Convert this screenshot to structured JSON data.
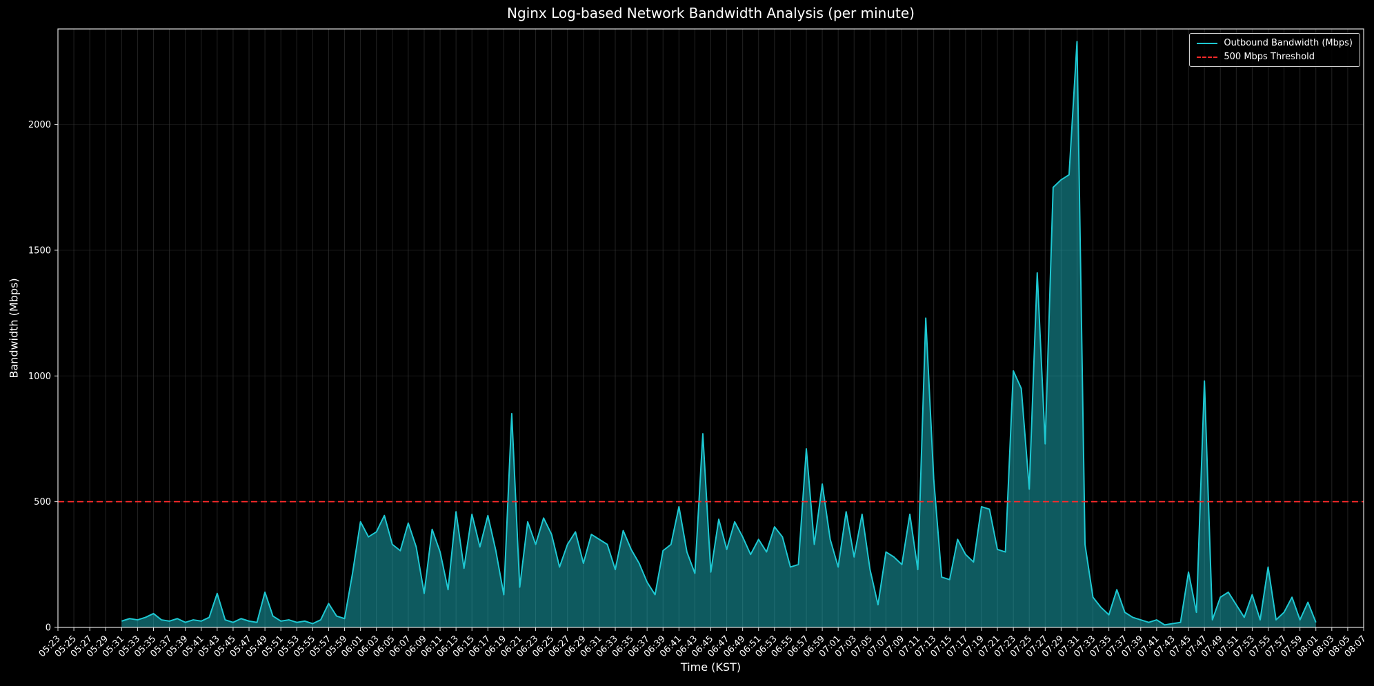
{
  "colors": {
    "background": "#000000",
    "text": "#ffffff",
    "spine": "#e0e0e0",
    "grid": "#3f3f3f",
    "series_line": "#1ec8d2",
    "threshold": "#ff2a2a"
  },
  "chart_data": {
    "type": "area",
    "title": "Nginx Log-based Network Bandwidth Analysis (per minute)",
    "xlabel": "Time (KST)",
    "ylabel": "Bandwidth (Mbps)",
    "ylim": [
      0,
      2380
    ],
    "grid": true,
    "y_ticks": [
      0,
      500,
      1000,
      1500,
      2000
    ],
    "x_tick_labels": [
      "05:23",
      "05:25",
      "05:27",
      "05:29",
      "05:31",
      "05:33",
      "05:35",
      "05:37",
      "05:39",
      "05:41",
      "05:43",
      "05:45",
      "05:47",
      "05:49",
      "05:51",
      "05:53",
      "05:55",
      "05:57",
      "05:59",
      "06:01",
      "06:03",
      "06:05",
      "06:07",
      "06:09",
      "06:11",
      "06:13",
      "06:15",
      "06:17",
      "06:19",
      "06:21",
      "06:23",
      "06:25",
      "06:27",
      "06:29",
      "06:31",
      "06:33",
      "06:35",
      "06:37",
      "06:39",
      "06:41",
      "06:43",
      "06:45",
      "06:47",
      "06:49",
      "06:51",
      "06:53",
      "06:55",
      "06:57",
      "06:59",
      "07:01",
      "07:03",
      "07:05",
      "07:07",
      "07:09",
      "07:11",
      "07:13",
      "07:15",
      "07:17",
      "07:19",
      "07:21",
      "07:23",
      "07:25",
      "07:27",
      "07:29",
      "07:31",
      "07:33",
      "07:35",
      "07:37",
      "07:39",
      "07:41",
      "07:43",
      "07:45",
      "07:47",
      "07:49",
      "07:51",
      "07:53",
      "07:55",
      "07:57",
      "07:59",
      "08:01",
      "08:03",
      "08:05",
      "08:07"
    ],
    "threshold": {
      "value": 500,
      "color": "#ff2a2a",
      "style": "dashed"
    },
    "legend": {
      "position": "upper right",
      "entries": [
        {
          "label": "Outbound Bandwidth (Mbps)",
          "color": "#1ec8d2",
          "style": "solid"
        },
        {
          "label": "500 Mbps Threshold",
          "color": "#ff2a2a",
          "style": "dashed"
        }
      ]
    },
    "series": [
      {
        "name": "Outbound Bandwidth (Mbps)",
        "color": "#1ec8d2",
        "fill_alpha": 0.45,
        "times": [
          "05:31",
          "05:32",
          "05:33",
          "05:34",
          "05:35",
          "05:36",
          "05:37",
          "05:38",
          "05:39",
          "05:40",
          "05:41",
          "05:42",
          "05:43",
          "05:44",
          "05:45",
          "05:46",
          "05:47",
          "05:48",
          "05:49",
          "05:50",
          "05:51",
          "05:52",
          "05:53",
          "05:54",
          "05:55",
          "05:56",
          "05:57",
          "05:58",
          "05:59",
          "06:00",
          "06:01",
          "06:02",
          "06:03",
          "06:04",
          "06:05",
          "06:06",
          "06:07",
          "06:08",
          "06:09",
          "06:10",
          "06:11",
          "06:12",
          "06:13",
          "06:14",
          "06:15",
          "06:16",
          "06:17",
          "06:18",
          "06:19",
          "06:20",
          "06:21",
          "06:22",
          "06:23",
          "06:24",
          "06:25",
          "06:26",
          "06:27",
          "06:28",
          "06:29",
          "06:30",
          "06:31",
          "06:32",
          "06:33",
          "06:34",
          "06:35",
          "06:36",
          "06:37",
          "06:38",
          "06:39",
          "06:40",
          "06:41",
          "06:42",
          "06:43",
          "06:44",
          "06:45",
          "06:46",
          "06:47",
          "06:48",
          "06:49",
          "06:50",
          "06:51",
          "06:52",
          "06:53",
          "06:54",
          "06:55",
          "06:56",
          "06:57",
          "06:58",
          "06:59",
          "07:00",
          "07:01",
          "07:02",
          "07:03",
          "07:04",
          "07:05",
          "07:06",
          "07:07",
          "07:08",
          "07:09",
          "07:10",
          "07:11",
          "07:12",
          "07:13",
          "07:14",
          "07:15",
          "07:16",
          "07:17",
          "07:18",
          "07:19",
          "07:20",
          "07:21",
          "07:22",
          "07:23",
          "07:24",
          "07:25",
          "07:26",
          "07:27",
          "07:28",
          "07:29",
          "07:30",
          "07:31",
          "07:32",
          "07:33",
          "07:34",
          "07:35",
          "07:36",
          "07:37",
          "07:38",
          "07:39",
          "07:40",
          "07:41",
          "07:42",
          "07:43",
          "07:44",
          "07:45",
          "07:46",
          "07:47",
          "07:48",
          "07:49",
          "07:50",
          "07:51",
          "07:52",
          "07:53",
          "07:54",
          "07:55",
          "07:56",
          "07:57",
          "07:58",
          "07:59",
          "08:00",
          "08:01"
        ],
        "values": [
          25,
          35,
          30,
          40,
          55,
          30,
          25,
          35,
          20,
          30,
          25,
          40,
          135,
          30,
          20,
          35,
          25,
          20,
          140,
          45,
          25,
          30,
          20,
          25,
          15,
          30,
          95,
          45,
          35,
          215,
          420,
          360,
          380,
          445,
          330,
          305,
          415,
          320,
          135,
          390,
          300,
          150,
          460,
          235,
          450,
          320,
          445,
          305,
          130,
          850,
          160,
          420,
          330,
          435,
          370,
          240,
          330,
          380,
          255,
          370,
          350,
          330,
          230,
          385,
          310,
          255,
          180,
          130,
          305,
          330,
          480,
          300,
          215,
          770,
          220,
          430,
          310,
          420,
          360,
          290,
          350,
          300,
          400,
          360,
          240,
          250,
          710,
          330,
          570,
          350,
          240,
          460,
          280,
          450,
          230,
          90,
          300,
          280,
          250,
          450,
          230,
          1230,
          590,
          200,
          190,
          350,
          290,
          260,
          480,
          470,
          310,
          300,
          1020,
          950,
          550,
          1410,
          730,
          1750,
          1780,
          1800,
          2330,
          330,
          120,
          80,
          50,
          150,
          60,
          40,
          30,
          20,
          30,
          10,
          15,
          20,
          220,
          60,
          980,
          30,
          120,
          140,
          90,
          40,
          130,
          30,
          240,
          30,
          60,
          120,
          30,
          100,
          20
        ]
      }
    ]
  }
}
